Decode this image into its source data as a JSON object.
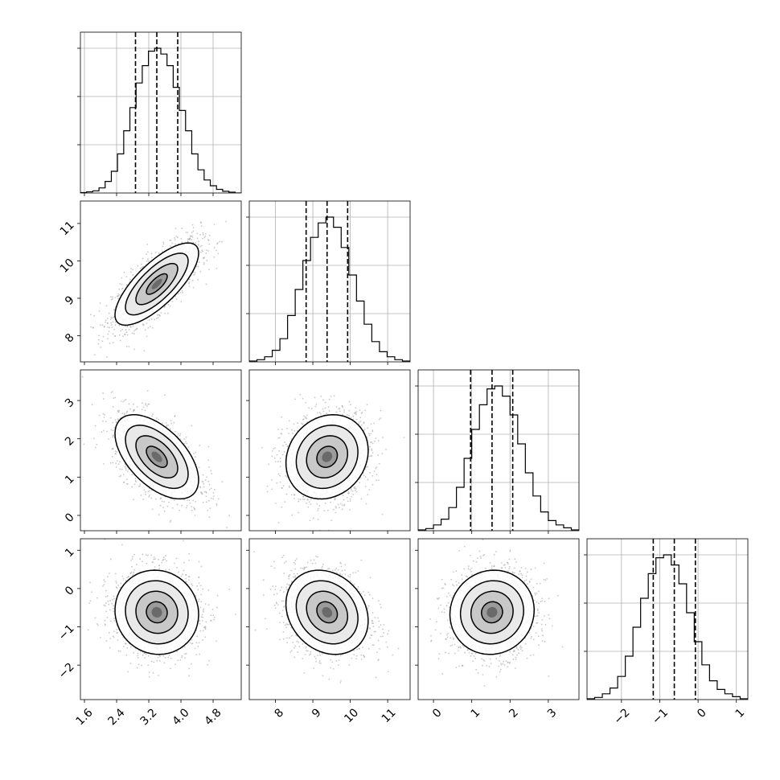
{
  "chart_data": {
    "type": "corner",
    "n_params": 4,
    "grid": true,
    "params": [
      {
        "range": [
          1.5,
          5.5
        ],
        "ticks": [
          1.6,
          2.4,
          3.2,
          4.0,
          4.8
        ],
        "tick_labels": [
          "1.6",
          "2.4",
          "3.2",
          "4.0",
          "4.8"
        ],
        "quantiles": [
          2.87,
          3.4,
          3.92
        ],
        "hist_bins": [
          0.003,
          0.008,
          0.015,
          0.035,
          0.08,
          0.15,
          0.27,
          0.43,
          0.59,
          0.76,
          0.88,
          0.98,
          1.0,
          0.96,
          0.88,
          0.73,
          0.57,
          0.43,
          0.27,
          0.16,
          0.09,
          0.05,
          0.025,
          0.012,
          0.006,
          0.0
        ]
      },
      {
        "range": [
          7.3,
          11.6
        ],
        "ticks": [
          8,
          9,
          10,
          11
        ],
        "tick_labels": [
          "8",
          "9",
          "10",
          "11"
        ],
        "quantiles": [
          8.82,
          9.38,
          9.93
        ],
        "hist_bins": [
          0.006,
          0.015,
          0.035,
          0.08,
          0.16,
          0.32,
          0.5,
          0.7,
          0.86,
          0.96,
          1.0,
          0.93,
          0.79,
          0.6,
          0.42,
          0.26,
          0.14,
          0.07,
          0.035,
          0.015,
          0.006
        ]
      },
      {
        "range": [
          -0.4,
          3.8
        ],
        "ticks": [
          0,
          1,
          2,
          3
        ],
        "tick_labels": [
          "0",
          "1",
          "2",
          "3"
        ],
        "quantiles": [
          0.97,
          1.53,
          2.07
        ],
        "hist_bins": [
          0.006,
          0.015,
          0.04,
          0.08,
          0.16,
          0.3,
          0.5,
          0.7,
          0.87,
          0.98,
          1.0,
          0.93,
          0.8,
          0.6,
          0.4,
          0.24,
          0.13,
          0.07,
          0.04,
          0.02,
          0.006
        ]
      },
      {
        "range": [
          -2.9,
          1.3
        ],
        "ticks": [
          -2,
          -1,
          0,
          1
        ],
        "tick_labels": [
          "−2",
          "−1",
          "0",
          "1"
        ],
        "quantiles": [
          -1.17,
          -0.62,
          -0.07
        ],
        "hist_bins": [
          0.006,
          0.015,
          0.04,
          0.08,
          0.16,
          0.3,
          0.5,
          0.7,
          0.87,
          0.98,
          1.0,
          0.93,
          0.8,
          0.6,
          0.4,
          0.24,
          0.13,
          0.07,
          0.04,
          0.02,
          0.006
        ]
      }
    ],
    "correlations": [
      [
        1.0,
        0.75,
        -0.55,
        -0.05
      ],
      [
        0.75,
        1.0,
        0.15,
        -0.2
      ],
      [
        -0.55,
        0.15,
        1.0,
        0.05
      ],
      [
        -0.05,
        -0.2,
        0.05,
        1.0
      ]
    ],
    "sigmas": [
      0.52,
      0.55,
      0.55,
      0.55
    ],
    "contour_levels_sigma": [
      0.5,
      1.0,
      1.5,
      2.0
    ],
    "colors": {
      "ink": "#000000",
      "scatter": "#9a9a9a",
      "grid": "#b0b0b0"
    }
  }
}
